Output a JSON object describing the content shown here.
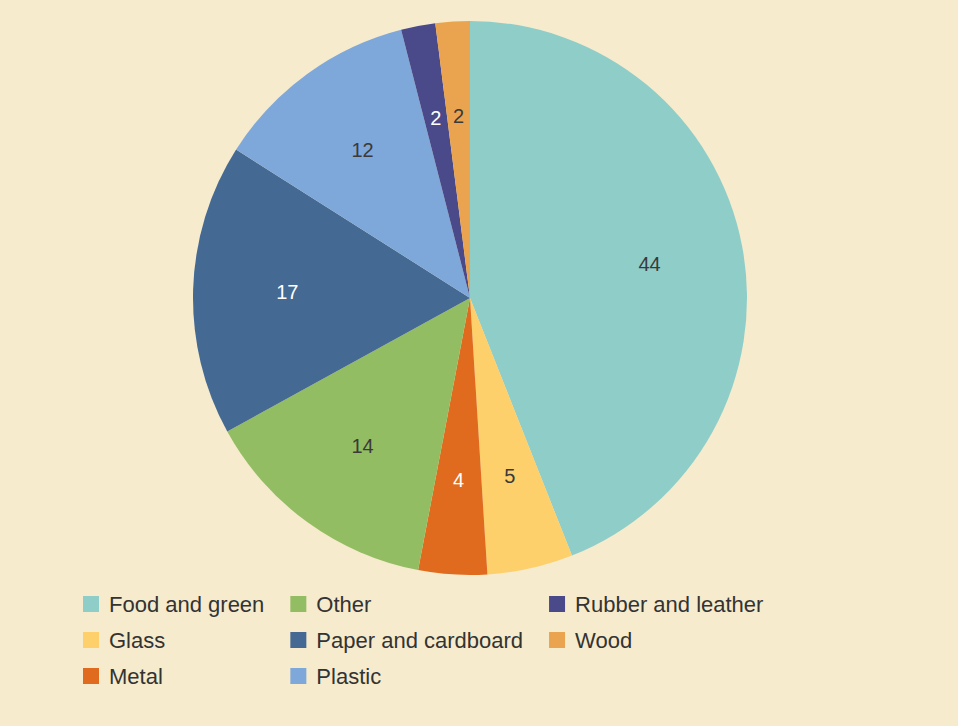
{
  "chart_data": {
    "type": "pie",
    "categories": [
      "Food and green",
      "Glass",
      "Metal",
      "Other",
      "Paper and cardboard",
      "Plastic",
      "Rubber and leather",
      "Wood"
    ],
    "values": [
      44,
      5,
      4,
      14,
      17,
      12,
      2,
      2
    ],
    "colors": [
      "#8fcdc8",
      "#fdd06b",
      "#e06b1f",
      "#93bd62",
      "#446993",
      "#7ea7da",
      "#4a4a8a",
      "#eaa44f"
    ],
    "data_labels": true,
    "legend": "bottom"
  }
}
